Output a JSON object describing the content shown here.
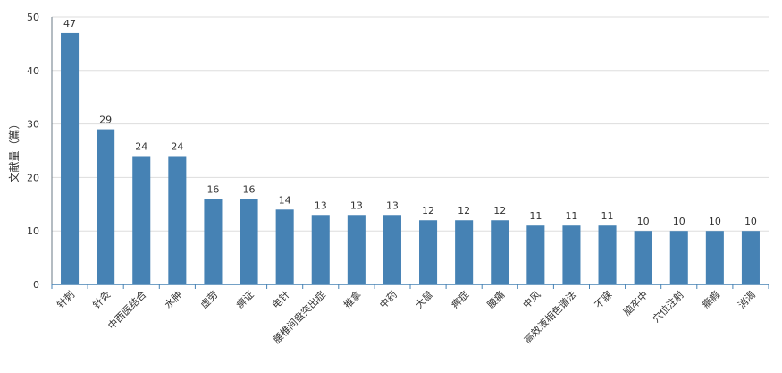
{
  "chart_data": {
    "type": "bar",
    "ylabel": "文献量（篇）",
    "ylim": [
      0,
      50
    ],
    "yticks": [
      0,
      10,
      20,
      30,
      40,
      50
    ],
    "grid": true,
    "bar_color": "#4682b4",
    "categories": [
      "针刺",
      "针灸",
      "中西医结合",
      "水肿",
      "虚劳",
      "痹证",
      "电针",
      "腰椎间盘突出症",
      "推拿",
      "中药",
      "大鼠",
      "痹症",
      "腰痛",
      "中风",
      "高效液相色谱法",
      "不寐",
      "脑卒中",
      "穴位注射",
      "癥瘕",
      "消渴"
    ],
    "values": [
      47,
      29,
      24,
      24,
      16,
      16,
      14,
      13,
      13,
      13,
      12,
      12,
      12,
      11,
      11,
      11,
      10,
      10,
      10,
      10
    ]
  }
}
